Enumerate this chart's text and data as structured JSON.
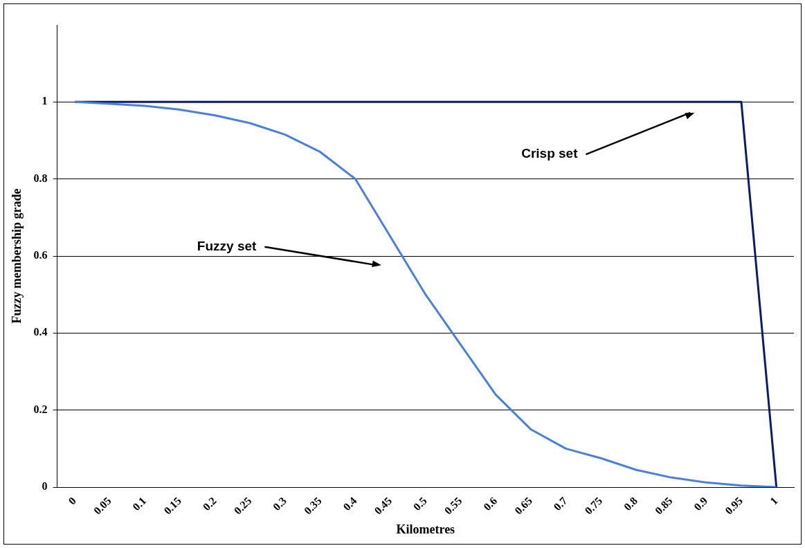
{
  "chart_data": {
    "type": "line",
    "xlabel": "Kilometres",
    "ylabel": "Fuzzy membership grade",
    "categories": [
      "0",
      "0.05",
      "0.1",
      "0.15",
      "0.2",
      "0.25",
      "0.3",
      "0.35",
      "0.4",
      "0.45",
      "0.5",
      "0.55",
      "0.6",
      "0.65",
      "0.7",
      "0.75",
      "0.8",
      "0.85",
      "0.9",
      "0.95",
      "1"
    ],
    "series": [
      {
        "color": "#4a7ee0",
        "values": [
          1.0,
          0.995,
          0.99,
          0.98,
          0.965,
          0.945,
          0.915,
          0.87,
          0.8,
          0.65,
          0.5,
          0.37,
          0.24,
          0.15,
          0.1,
          0.075,
          0.045,
          0.025,
          0.012,
          0.004,
          0
        ]
      },
      {
        "color": "#0a1a6e",
        "values": [
          1,
          1,
          1,
          1,
          1,
          1,
          1,
          1,
          1,
          1,
          1,
          1,
          1,
          1,
          1,
          1,
          1,
          1,
          1,
          1,
          0
        ]
      }
    ],
    "ylim": [
      0,
      1.2
    ],
    "yticks": [
      0,
      0.2,
      0.4,
      0.6,
      0.8,
      1
    ],
    "grid": "y",
    "legend": false,
    "marker": "none",
    "line_style": "solid",
    "annotations": [
      "Fuzzy set",
      "Crisp set"
    ]
  }
}
